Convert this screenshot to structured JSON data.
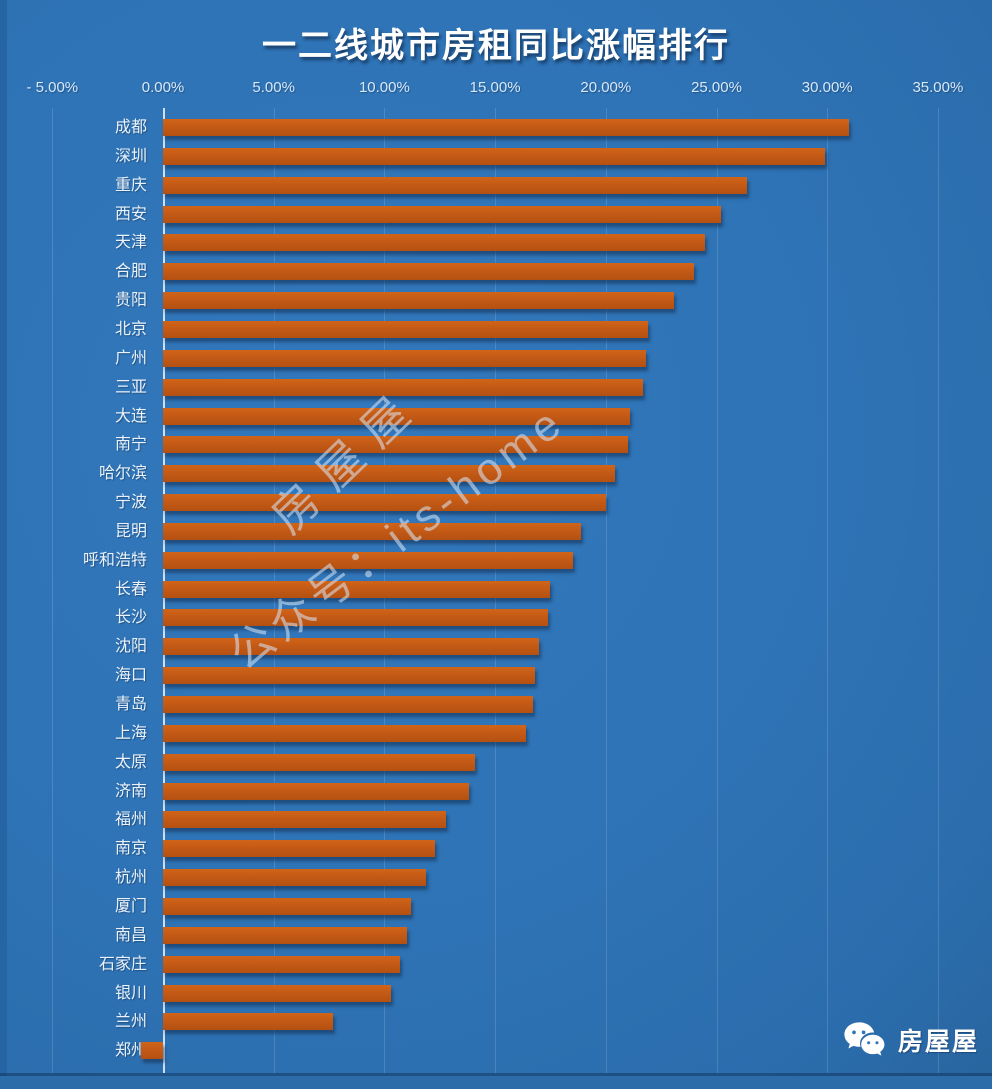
{
  "title": "一二线城市房租同比涨幅排行",
  "watermark": {
    "line1": "房屋屋",
    "line2": "公众号：its-home"
  },
  "footer_logo": {
    "icon": "wechat-icon",
    "label": "房屋屋"
  },
  "chart_data": {
    "type": "bar",
    "orientation": "horizontal",
    "title": "一二线城市房租同比涨幅排行",
    "unit": "percent",
    "categories": [
      "成都",
      "深圳",
      "重庆",
      "西安",
      "天津",
      "合肥",
      "贵阳",
      "北京",
      "广州",
      "三亚",
      "大连",
      "南宁",
      "哈尔滨",
      "宁波",
      "昆明",
      "呼和浩特",
      "长春",
      "长沙",
      "沈阳",
      "海口",
      "青岛",
      "上海",
      "太原",
      "济南",
      "福州",
      "南京",
      "杭州",
      "厦门",
      "南昌",
      "石家庄",
      "银川",
      "兰州",
      "郑州"
    ],
    "values": [
      31.0,
      29.9,
      26.4,
      25.2,
      24.5,
      24.0,
      23.1,
      21.9,
      21.8,
      21.7,
      21.1,
      21.0,
      20.4,
      20.0,
      18.9,
      18.5,
      17.5,
      17.4,
      17.0,
      16.8,
      16.7,
      16.4,
      14.1,
      13.8,
      12.8,
      12.3,
      11.9,
      11.2,
      11.0,
      10.7,
      10.3,
      7.7,
      -1.0
    ],
    "x_axis": {
      "min": -5,
      "max": 35,
      "step": 5,
      "ticks": [
        "- 5.00%",
        "0.00%",
        "5.00%",
        "10.00%",
        "15.00%",
        "20.00%",
        "25.00%",
        "30.00%",
        "35.00%"
      ]
    },
    "grid": "vertical",
    "legend": "none",
    "colors": {
      "bar": "#c45a16",
      "background": "#2e73b5",
      "title_text": "#ffffff",
      "axis_text": "#d8e9f9",
      "label_text": "#eaf3fc"
    }
  }
}
